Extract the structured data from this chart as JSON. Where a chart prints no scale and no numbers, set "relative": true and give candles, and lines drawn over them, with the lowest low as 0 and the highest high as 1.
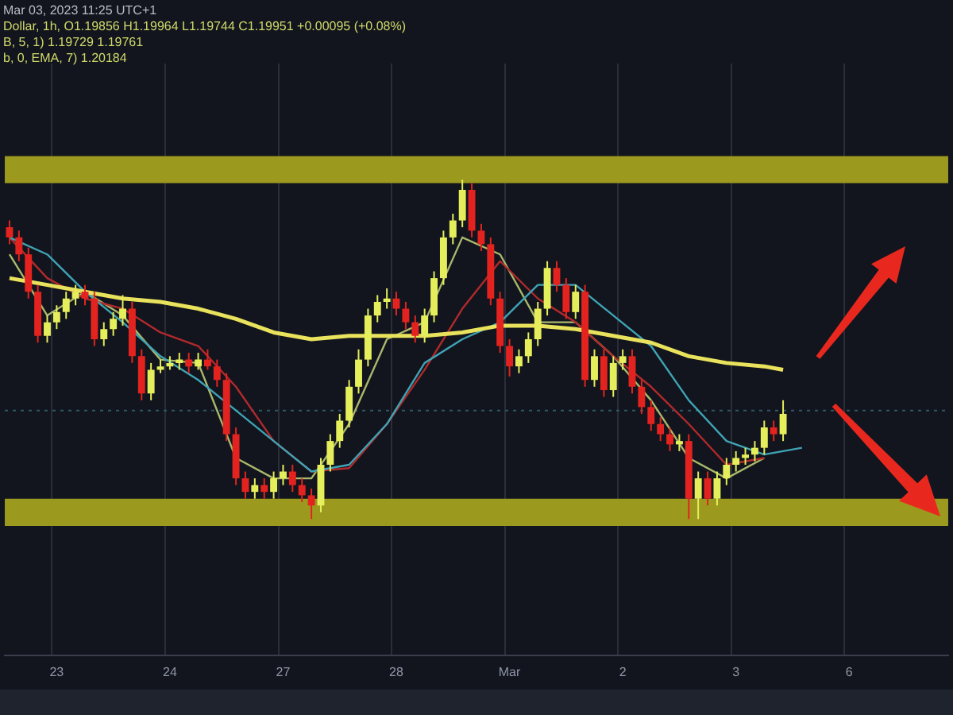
{
  "chart_data": {
    "type": "candlestick",
    "relative": true,
    "grid": "x",
    "tick_labels": "x",
    "marker": "none",
    "annotations": [
      "Mar 03, 2023 11:25 UTC+1",
      "Dollar, 1h, O1.19856 H1.19964 L1.19744 C1.19951 +0.00095 (+0.08%)",
      "B, 5, 1) 1.19729  1.19761",
      "b, 0, EMA, 7) 1.20184"
    ],
    "categories": [
      null,
      null,
      null,
      null,
      null,
      "23",
      null,
      null,
      null,
      null,
      null,
      null,
      null,
      null,
      null,
      null,
      null,
      "24",
      null,
      null,
      null,
      null,
      null,
      null,
      null,
      null,
      null,
      null,
      null,
      "27",
      null,
      null,
      null,
      null,
      null,
      null,
      null,
      null,
      null,
      null,
      null,
      "28",
      null,
      null,
      null,
      null,
      null,
      null,
      null,
      null,
      null,
      null,
      null,
      "Mar",
      null,
      null,
      null,
      null,
      null,
      null,
      null,
      null,
      null,
      null,
      null,
      "2",
      null,
      null,
      null,
      null,
      null,
      null,
      null,
      null,
      null,
      null,
      null,
      "3",
      null,
      null,
      null,
      null,
      null,
      null,
      null,
      null,
      null,
      null,
      null,
      "6",
      null,
      null,
      null,
      null,
      null,
      null,
      null,
      null,
      null,
      null
    ],
    "ohlc": [
      [
        0.86,
        0.88,
        0.81,
        0.83
      ],
      [
        0.83,
        0.85,
        0.76,
        0.78
      ],
      [
        0.78,
        0.8,
        0.65,
        0.67
      ],
      [
        0.67,
        0.69,
        0.52,
        0.54
      ],
      [
        0.54,
        0.6,
        0.52,
        0.58
      ],
      [
        0.58,
        0.63,
        0.56,
        0.61
      ],
      [
        0.61,
        0.67,
        0.59,
        0.65
      ],
      [
        0.65,
        0.69,
        0.63,
        0.67
      ],
      [
        0.67,
        0.69,
        0.63,
        0.65
      ],
      [
        0.65,
        0.67,
        0.51,
        0.53
      ],
      [
        0.53,
        0.58,
        0.51,
        0.56
      ],
      [
        0.56,
        0.61,
        0.54,
        0.59
      ],
      [
        0.59,
        0.66,
        0.57,
        0.62
      ],
      [
        0.62,
        0.64,
        0.46,
        0.48
      ],
      [
        0.48,
        0.5,
        0.35,
        0.37
      ],
      [
        0.37,
        0.46,
        0.35,
        0.44
      ],
      [
        0.44,
        0.47,
        0.43,
        0.45
      ],
      [
        0.45,
        0.48,
        0.44,
        0.46
      ],
      [
        0.46,
        0.49,
        0.44,
        0.47
      ],
      [
        0.47,
        0.49,
        0.43,
        0.45
      ],
      [
        0.45,
        0.49,
        0.44,
        0.47
      ],
      [
        0.47,
        0.5,
        0.44,
        0.45
      ],
      [
        0.45,
        0.47,
        0.39,
        0.41
      ],
      [
        0.41,
        0.43,
        0.23,
        0.25
      ],
      [
        0.25,
        0.27,
        0.1,
        0.12
      ],
      [
        0.12,
        0.14,
        0.06,
        0.08
      ],
      [
        0.08,
        0.12,
        0.06,
        0.1
      ],
      [
        0.1,
        0.12,
        0.06,
        0.08
      ],
      [
        0.08,
        0.14,
        0.06,
        0.12
      ],
      [
        0.12,
        0.16,
        0.1,
        0.14
      ],
      [
        0.14,
        0.16,
        0.08,
        0.1
      ],
      [
        0.1,
        0.12,
        0.05,
        0.07
      ],
      [
        0.07,
        0.09,
        0.0,
        0.04
      ],
      [
        0.04,
        0.18,
        0.02,
        0.16
      ],
      [
        0.16,
        0.25,
        0.14,
        0.23
      ],
      [
        0.23,
        0.31,
        0.21,
        0.29
      ],
      [
        0.29,
        0.41,
        0.27,
        0.39
      ],
      [
        0.39,
        0.5,
        0.37,
        0.47
      ],
      [
        0.47,
        0.62,
        0.45,
        0.6
      ],
      [
        0.6,
        0.66,
        0.58,
        0.64
      ],
      [
        0.64,
        0.68,
        0.62,
        0.65
      ],
      [
        0.65,
        0.67,
        0.6,
        0.62
      ],
      [
        0.62,
        0.64,
        0.56,
        0.58
      ],
      [
        0.58,
        0.6,
        0.52,
        0.54
      ],
      [
        0.54,
        0.62,
        0.52,
        0.6
      ],
      [
        0.6,
        0.73,
        0.58,
        0.71
      ],
      [
        0.71,
        0.85,
        0.69,
        0.83
      ],
      [
        0.83,
        0.9,
        0.81,
        0.88
      ],
      [
        0.88,
        1.0,
        0.86,
        0.97
      ],
      [
        0.97,
        0.99,
        0.83,
        0.85
      ],
      [
        0.85,
        0.87,
        0.79,
        0.81
      ],
      [
        0.81,
        0.83,
        0.63,
        0.65
      ],
      [
        0.65,
        0.67,
        0.49,
        0.51
      ],
      [
        0.51,
        0.53,
        0.42,
        0.45
      ],
      [
        0.45,
        0.5,
        0.43,
        0.48
      ],
      [
        0.48,
        0.55,
        0.46,
        0.53
      ],
      [
        0.53,
        0.64,
        0.51,
        0.62
      ],
      [
        0.62,
        0.76,
        0.6,
        0.74
      ],
      [
        0.74,
        0.76,
        0.67,
        0.69
      ],
      [
        0.69,
        0.71,
        0.59,
        0.61
      ],
      [
        0.61,
        0.69,
        0.59,
        0.67
      ],
      [
        0.67,
        0.69,
        0.39,
        0.41
      ],
      [
        0.41,
        0.5,
        0.39,
        0.48
      ],
      [
        0.48,
        0.5,
        0.36,
        0.38
      ],
      [
        0.38,
        0.48,
        0.36,
        0.46
      ],
      [
        0.46,
        0.5,
        0.44,
        0.48
      ],
      [
        0.48,
        0.5,
        0.37,
        0.39
      ],
      [
        0.39,
        0.41,
        0.31,
        0.33
      ],
      [
        0.33,
        0.35,
        0.26,
        0.28
      ],
      [
        0.28,
        0.3,
        0.23,
        0.25
      ],
      [
        0.25,
        0.27,
        0.2,
        0.22
      ],
      [
        0.22,
        0.25,
        0.2,
        0.23
      ],
      [
        0.23,
        0.25,
        0.0,
        0.06
      ],
      [
        0.06,
        0.14,
        0.0,
        0.12
      ],
      [
        0.12,
        0.14,
        0.04,
        0.06
      ],
      [
        0.06,
        0.14,
        0.04,
        0.12
      ],
      [
        0.12,
        0.18,
        0.1,
        0.16
      ],
      [
        0.16,
        0.2,
        0.14,
        0.18
      ],
      [
        0.18,
        0.21,
        0.16,
        0.19
      ],
      [
        0.19,
        0.23,
        0.17,
        0.21
      ],
      [
        0.21,
        0.29,
        0.19,
        0.27
      ],
      [
        0.27,
        0.29,
        0.23,
        0.25
      ],
      [
        0.25,
        0.35,
        0.23,
        0.31
      ],
      null,
      null,
      null,
      null,
      null,
      null,
      null,
      null,
      null,
      null,
      null,
      null,
      null,
      null,
      null,
      null,
      null
    ],
    "colors": [
      "#e3231f",
      "#e3231f",
      "#e3231f",
      "#e3231f",
      "#e5ee5b",
      "#e5ee5b",
      "#e5ee5b",
      "#e5ee5b",
      "#e3231f",
      "#e3231f",
      "#e5ee5b",
      "#e5ee5b",
      "#e5ee5b",
      "#e3231f",
      "#e3231f",
      "#e5ee5b",
      "#e5ee5b",
      "#e5ee5b",
      "#e5ee5b",
      "#e3231f",
      "#e5ee5b",
      "#e3231f",
      "#e3231f",
      "#e3231f",
      "#e3231f",
      "#e3231f",
      "#e5ee5b",
      "#e3231f",
      "#e5ee5b",
      "#e5ee5b",
      "#e3231f",
      "#e3231f",
      "#e3231f",
      "#e5ee5b",
      "#e5ee5b",
      "#e5ee5b",
      "#e5ee5b",
      "#e5ee5b",
      "#e5ee5b",
      "#e5ee5b",
      "#e5ee5b",
      "#e3231f",
      "#e3231f",
      "#e3231f",
      "#e5ee5b",
      "#e5ee5b",
      "#e5ee5b",
      "#e5ee5b",
      "#e5ee5b",
      "#e3231f",
      "#e3231f",
      "#e3231f",
      "#e3231f",
      "#e3231f",
      "#e5ee5b",
      "#e5ee5b",
      "#e5ee5b",
      "#e5ee5b",
      "#e3231f",
      "#e3231f",
      "#e5ee5b",
      "#e3231f",
      "#e5ee5b",
      "#e3231f",
      "#e5ee5b",
      "#e5ee5b",
      "#e3231f",
      "#e3231f",
      "#e3231f",
      "#e3231f",
      "#e3231f",
      "#e5ee5b",
      "#e3231f",
      "#e5ee5b",
      "#e3231f",
      "#e5ee5b",
      "#e5ee5b",
      "#e5ee5b",
      "#e5ee5b",
      "#e5ee5b",
      "#e5ee5b",
      "#e3231f",
      "#e5ee5b",
      null,
      null,
      null,
      null,
      null,
      null,
      null,
      null,
      null,
      null,
      null,
      null,
      null,
      null,
      null,
      null,
      null
    ],
    "series": [
      {
        "type": "line",
        "color": "#e8e25c",
        "values": [
          0.71,
          null,
          null,
          null,
          0.69,
          null,
          null,
          null,
          0.67,
          null,
          null,
          null,
          0.65,
          null,
          null,
          null,
          0.64,
          null,
          null,
          null,
          0.62,
          null,
          null,
          null,
          0.59,
          null,
          null,
          null,
          0.55,
          null,
          null,
          null,
          0.53,
          null,
          null,
          null,
          0.54,
          null,
          null,
          null,
          0.54,
          null,
          null,
          null,
          0.54,
          null,
          null,
          null,
          0.55,
          null,
          null,
          null,
          0.57,
          null,
          null,
          null,
          0.57,
          null,
          null,
          null,
          0.56,
          null,
          null,
          null,
          0.54,
          null,
          null,
          null,
          0.52,
          null,
          null,
          null,
          0.48,
          null,
          null,
          null,
          0.46,
          null,
          null,
          null,
          0.45,
          null,
          0.44,
          null,
          null,
          null,
          null,
          null,
          null,
          null,
          null,
          null,
          null,
          null,
          null,
          null,
          null,
          null,
          null,
          null
        ]
      },
      {
        "type": "line",
        "color": "#3fa3b5",
        "values": [
          0.83,
          null,
          null,
          null,
          0.78,
          null,
          null,
          null,
          0.67,
          null,
          null,
          null,
          0.58,
          null,
          null,
          null,
          0.48,
          null,
          null,
          null,
          0.41,
          null,
          null,
          null,
          0.32,
          null,
          null,
          null,
          0.23,
          null,
          null,
          null,
          0.14,
          null,
          null,
          null,
          0.16,
          null,
          null,
          null,
          0.28,
          null,
          null,
          null,
          0.46,
          null,
          null,
          null,
          0.53,
          null,
          null,
          null,
          0.58,
          null,
          null,
          null,
          0.69,
          null,
          null,
          null,
          0.69,
          null,
          null,
          null,
          0.6,
          null,
          null,
          null,
          0.51,
          null,
          null,
          null,
          0.35,
          null,
          null,
          null,
          0.23,
          null,
          null,
          null,
          0.19,
          null,
          null,
          null,
          0.21,
          null,
          null,
          null,
          null,
          null,
          null,
          null,
          null,
          null,
          null,
          null,
          null,
          null,
          null,
          null
        ]
      },
      {
        "type": "line",
        "color": "#b02a2c",
        "values": [
          0.83,
          null,
          null,
          null,
          0.71,
          null,
          null,
          null,
          0.65,
          null,
          null,
          null,
          0.62,
          null,
          null,
          null,
          0.55,
          null,
          null,
          null,
          0.51,
          null,
          null,
          null,
          0.39,
          null,
          null,
          null,
          0.23,
          null,
          null,
          null,
          0.14,
          null,
          null,
          null,
          0.15,
          null,
          null,
          null,
          0.28,
          null,
          null,
          null,
          0.44,
          null,
          null,
          null,
          0.62,
          null,
          null,
          null,
          0.76,
          null,
          null,
          null,
          0.65,
          null,
          null,
          null,
          0.58,
          null,
          null,
          null,
          0.48,
          null,
          null,
          null,
          0.39,
          null,
          null,
          null,
          0.28,
          null,
          null,
          null,
          0.16,
          null,
          null,
          null,
          0.18,
          null,
          null,
          null,
          null,
          null,
          null,
          null,
          null,
          null,
          null,
          null,
          null,
          null,
          null,
          null,
          null,
          null,
          null,
          null
        ]
      },
      {
        "type": "line",
        "color": "#a9b86c",
        "values": [
          0.78,
          null,
          null,
          null,
          0.6,
          null,
          null,
          null,
          0.67,
          null,
          null,
          null,
          0.6,
          null,
          null,
          null,
          0.47,
          null,
          null,
          null,
          0.46,
          null,
          null,
          null,
          0.18,
          null,
          null,
          null,
          0.12,
          null,
          null,
          null,
          0.12,
          null,
          null,
          null,
          0.28,
          null,
          null,
          null,
          0.53,
          null,
          null,
          null,
          0.58,
          null,
          null,
          null,
          0.83,
          null,
          null,
          null,
          0.78,
          null,
          null,
          null,
          0.58,
          null,
          null,
          null,
          0.58,
          null,
          null,
          null,
          0.48,
          null,
          null,
          null,
          0.35,
          null,
          null,
          null,
          0.18,
          null,
          null,
          null,
          0.12,
          null,
          null,
          null,
          0.18,
          null,
          null,
          null,
          null,
          null,
          null,
          null,
          null,
          null,
          null,
          null,
          null,
          null,
          null,
          null,
          null,
          null,
          null,
          null
        ]
      }
    ],
    "bands": [
      {
        "axis": "y",
        "from": 0.99,
        "to": 1.07,
        "color": "#9c9a1e"
      },
      {
        "axis": "y",
        "from": -0.02,
        "to": 0.06,
        "color": "#9c9a1e"
      }
    ],
    "ref_lines": [
      {
        "axis": "y",
        "value": 0.32,
        "color": "#2f5a66",
        "line_style": "dotted"
      }
    ]
  }
}
